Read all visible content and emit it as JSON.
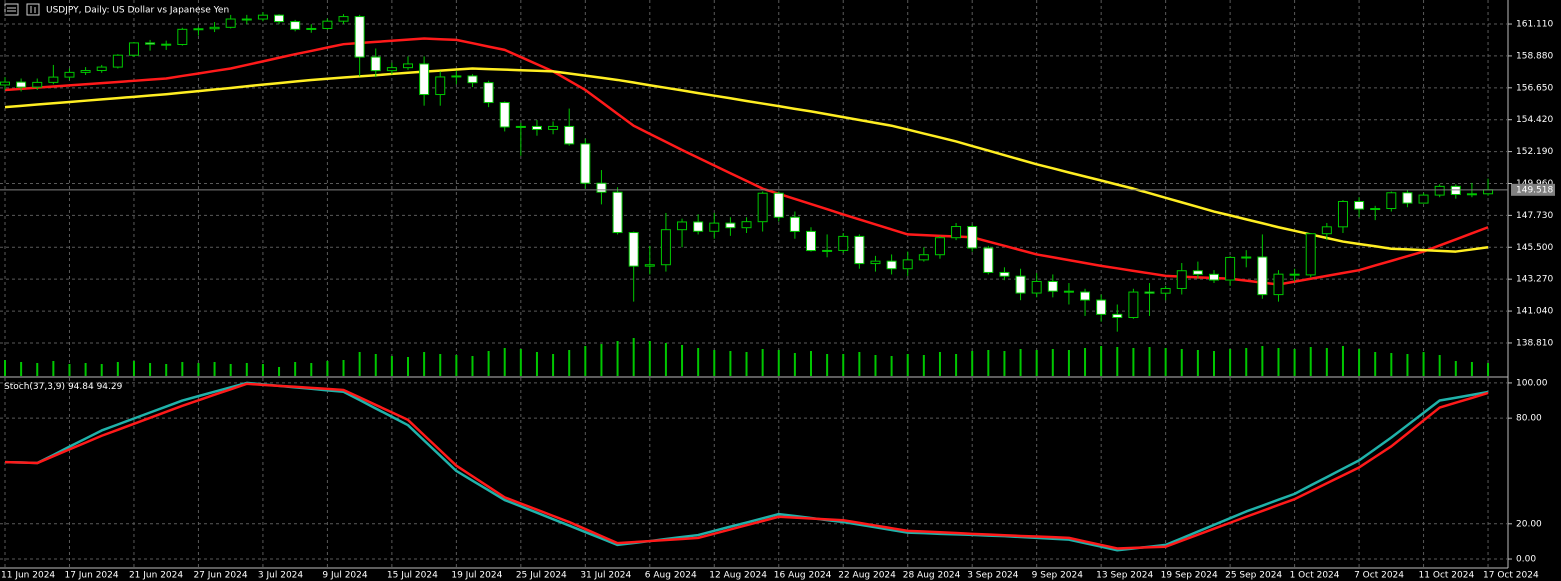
{
  "chart_data": [
    {
      "type": "candlestick",
      "title": "USDJPY, Daily:  US Dollar vs Japanese Yen",
      "categories": [
        "11 Jun 2024",
        null,
        null,
        null,
        "17 Jun 2024",
        null,
        null,
        null,
        "21 Jun 2024",
        null,
        null,
        null,
        "27 Jun 2024",
        null,
        null,
        null,
        "3 Jul 2024",
        null,
        null,
        null,
        "9 Jul 2024",
        null,
        null,
        null,
        "15 Jul 2024",
        null,
        null,
        null,
        "19 Jul 2024",
        null,
        null,
        null,
        "25 Jul 2024",
        null,
        null,
        null,
        "31 Jul 2024",
        null,
        null,
        null,
        "6 Aug 2024",
        null,
        null,
        null,
        "12 Aug 2024",
        null,
        null,
        null,
        "16 Aug 2024",
        null,
        null,
        null,
        "22 Aug 2024",
        null,
        null,
        null,
        "28 Aug 2024",
        null,
        null,
        null,
        "3 Sep 2024",
        null,
        null,
        null,
        "9 Sep 2024",
        null,
        null,
        null,
        "13 Sep 2024",
        null,
        null,
        null,
        "19 Sep 2024",
        null,
        null,
        null,
        "25 Sep 2024",
        null,
        null,
        null,
        "1 Oct 2024",
        null,
        null,
        null,
        "7 Oct 2024",
        null,
        null,
        null,
        "11 Oct 2024",
        null,
        null,
        null,
        "17 Oct 2024"
      ],
      "open": [
        156.85,
        157.05,
        156.7,
        157.03,
        157.4,
        157.73,
        157.86,
        158.1,
        158.93,
        159.79,
        159.7,
        159.68,
        160.74,
        160.78,
        160.88,
        161.46,
        161.46,
        161.73,
        161.28,
        160.74,
        160.8,
        161.31,
        161.63,
        158.8,
        157.85,
        158.06,
        158.32,
        156.18,
        157.41,
        157.48,
        157.01,
        155.62,
        153.91,
        153.95,
        153.74,
        153.95,
        152.73,
        149.98,
        149.35,
        146.53,
        144.18,
        144.28,
        146.73,
        147.27,
        146.62,
        147.19,
        146.87,
        147.29,
        149.28,
        147.6,
        146.61,
        145.27,
        145.28,
        146.26,
        144.36,
        144.53,
        144.0,
        144.62,
        144.98,
        146.17,
        146.95,
        145.45,
        143.74,
        143.48,
        142.3,
        143.11,
        142.43,
        142.37,
        141.81,
        140.81,
        140.59,
        142.37,
        142.29,
        142.62,
        143.86,
        143.61,
        143.21,
        144.79,
        144.82,
        142.19,
        143.62,
        143.57,
        146.45,
        146.93,
        148.7,
        148.17,
        148.21,
        149.31,
        148.59,
        149.15,
        149.76,
        149.19,
        149.24
      ],
      "high": [
        157.4,
        157.3,
        157.3,
        158.25,
        158.0,
        158.1,
        158.25,
        159.0,
        159.85,
        160.0,
        159.95,
        160.85,
        160.9,
        161.25,
        161.75,
        161.75,
        161.95,
        161.8,
        161.4,
        161.1,
        161.5,
        161.8,
        161.75,
        159.4,
        158.4,
        158.85,
        158.85,
        157.8,
        157.85,
        157.6,
        157.15,
        155.7,
        154.2,
        154.4,
        154.3,
        155.2,
        153.1,
        150.9,
        149.7,
        146.6,
        145.6,
        147.9,
        147.5,
        147.8,
        147.9,
        147.6,
        147.6,
        149.4,
        149.4,
        148.0,
        146.9,
        146.4,
        146.5,
        146.4,
        144.9,
        145.0,
        145.2,
        145.5,
        146.3,
        147.2,
        147.1,
        145.6,
        144.1,
        144.0,
        143.7,
        143.6,
        143.0,
        142.6,
        142.2,
        141.5,
        142.6,
        143.0,
        142.8,
        144.4,
        144.5,
        143.9,
        144.9,
        145.3,
        146.4,
        143.9,
        144.0,
        146.5,
        147.2,
        148.8,
        149.0,
        148.4,
        149.4,
        149.5,
        149.3,
        149.9,
        149.9,
        150.0,
        150.3
      ],
      "low": [
        156.5,
        156.4,
        156.5,
        156.9,
        157.2,
        157.55,
        157.7,
        158.0,
        158.8,
        159.25,
        159.3,
        159.6,
        160.3,
        160.55,
        160.8,
        161.1,
        161.3,
        161.1,
        160.6,
        160.5,
        160.7,
        161.1,
        157.45,
        157.4,
        157.6,
        157.9,
        155.4,
        155.4,
        156.9,
        156.7,
        155.3,
        153.6,
        151.9,
        153.3,
        153.4,
        152.6,
        149.6,
        148.5,
        146.4,
        141.7,
        143.6,
        143.8,
        145.5,
        146.4,
        146.1,
        146.3,
        146.5,
        146.6,
        147.3,
        146.1,
        145.2,
        144.8,
        145.1,
        144.0,
        143.8,
        143.6,
        143.5,
        144.5,
        144.7,
        146.0,
        145.2,
        143.6,
        143.2,
        141.8,
        142.0,
        142.0,
        141.5,
        140.7,
        140.3,
        139.6,
        140.5,
        140.7,
        141.8,
        142.2,
        143.3,
        143.0,
        142.8,
        144.1,
        141.9,
        141.7,
        143.1,
        143.4,
        146.0,
        146.5,
        147.6,
        147.4,
        148.0,
        148.3,
        148.6,
        149.0,
        148.9,
        149.0,
        149.1
      ],
      "close": [
        157.05,
        156.7,
        157.03,
        157.4,
        157.73,
        157.86,
        158.1,
        158.93,
        159.79,
        159.7,
        159.68,
        160.74,
        160.78,
        160.88,
        161.46,
        161.46,
        161.73,
        161.28,
        160.74,
        160.8,
        161.31,
        161.63,
        158.8,
        157.85,
        158.06,
        158.32,
        156.18,
        157.41,
        157.48,
        157.01,
        155.62,
        153.91,
        153.95,
        153.74,
        153.95,
        152.73,
        149.98,
        149.35,
        146.53,
        144.18,
        144.28,
        146.73,
        147.27,
        146.62,
        147.19,
        146.87,
        147.29,
        149.28,
        147.6,
        146.61,
        145.27,
        145.28,
        146.26,
        144.36,
        144.53,
        144.0,
        144.62,
        144.98,
        146.17,
        146.95,
        145.45,
        143.74,
        143.48,
        142.3,
        143.11,
        142.43,
        142.37,
        141.81,
        140.81,
        140.59,
        142.37,
        142.29,
        142.62,
        143.86,
        143.61,
        143.21,
        144.79,
        144.82,
        142.19,
        143.62,
        143.57,
        146.45,
        146.93,
        148.7,
        148.17,
        148.21,
        149.31,
        148.59,
        149.15,
        149.76,
        149.19,
        149.24,
        149.52
      ],
      "volume": [
        80000,
        70000,
        65000,
        75000,
        60000,
        65000,
        60000,
        70000,
        75000,
        65000,
        60000,
        70000,
        65000,
        70000,
        60000,
        65000,
        60000,
        45000,
        70000,
        65000,
        75000,
        80000,
        120000,
        110000,
        100000,
        95000,
        120000,
        110000,
        105000,
        100000,
        125000,
        140000,
        135000,
        120000,
        110000,
        130000,
        150000,
        160000,
        175000,
        190000,
        175000,
        165000,
        155000,
        140000,
        130000,
        125000,
        120000,
        135000,
        130000,
        115000,
        125000,
        110000,
        110000,
        120000,
        105000,
        100000,
        110000,
        105000,
        120000,
        110000,
        125000,
        130000,
        125000,
        135000,
        130000,
        135000,
        130000,
        140000,
        150000,
        145000,
        140000,
        145000,
        140000,
        135000,
        130000,
        125000,
        135000,
        140000,
        150000,
        140000,
        135000,
        145000,
        140000,
        150000,
        135000,
        120000,
        115000,
        110000,
        120000,
        105000,
        75000,
        70000,
        65000
      ],
      "volume_color": "#00c800",
      "up_color": "#000000",
      "down_color": "#ffffff",
      "wick_color": "#00c800",
      "series": [
        {
          "color": "#ff1a1a",
          "values": [
            156.5,
            156.58,
            156.66,
            156.74,
            156.82,
            156.9,
            156.98,
            157.06,
            157.14,
            157.22,
            157.3,
            157.48,
            157.65,
            157.83,
            158.0,
            158.25,
            158.5,
            158.75,
            159.0,
            159.23,
            159.47,
            159.7,
            159.78,
            159.86,
            159.94,
            160.02,
            160.1,
            160.05,
            160.0,
            159.77,
            159.53,
            159.3,
            158.8,
            158.3,
            157.8,
            157.15,
            156.5,
            155.67,
            154.83,
            154.0,
            153.43,
            152.87,
            152.3,
            151.76,
            151.22,
            150.68,
            150.14,
            149.6,
            149.24,
            148.88,
            148.52,
            148.16,
            147.8,
            147.45,
            147.1,
            146.75,
            146.4,
            146.35,
            146.3,
            146.25,
            146.2,
            145.9,
            145.6,
            145.3,
            145.0,
            144.8,
            144.6,
            144.4,
            144.2,
            144.03,
            143.85,
            143.68,
            143.5,
            143.45,
            143.4,
            143.35,
            143.3,
            143.17,
            143.03,
            142.9,
            143.1,
            143.3,
            143.5,
            143.7,
            143.9,
            144.23,
            144.55,
            144.88,
            145.2,
            145.63,
            146.05,
            146.48,
            146.9
          ]
        },
        {
          "color": "#ffee22",
          "values": [
            155.3,
            155.39,
            155.48,
            155.57,
            155.66,
            155.75,
            155.84,
            155.93,
            156.02,
            156.11,
            156.2,
            156.31,
            156.42,
            156.53,
            156.64,
            156.76,
            156.87,
            156.98,
            157.09,
            157.2,
            157.28,
            157.37,
            157.45,
            157.53,
            157.62,
            157.7,
            157.78,
            157.85,
            157.93,
            158.0,
            157.96,
            157.92,
            157.88,
            157.84,
            157.8,
            157.65,
            157.5,
            157.35,
            157.2,
            157.02,
            156.83,
            156.65,
            156.47,
            156.28,
            156.1,
            155.92,
            155.73,
            155.55,
            155.37,
            155.18,
            155.0,
            154.8,
            154.6,
            154.4,
            154.2,
            154.0,
            153.73,
            153.45,
            153.18,
            152.9,
            152.58,
            152.26,
            151.94,
            151.62,
            151.3,
            151.02,
            150.73,
            150.45,
            150.17,
            149.88,
            149.6,
            149.28,
            148.96,
            148.64,
            148.32,
            148.0,
            147.73,
            147.45,
            147.18,
            146.9,
            146.65,
            146.4,
            146.15,
            145.9,
            145.73,
            145.57,
            145.4,
            145.35,
            145.3,
            145.25,
            145.2,
            145.35,
            145.5
          ]
        }
      ],
      "last_price": 149.518,
      "ylim": [
        136.5,
        162.79
      ],
      "yticks": [
        {
          "value": 161.11,
          "label": "161.110"
        },
        {
          "value": 158.88,
          "label": "158.880"
        },
        {
          "value": 156.65,
          "label": "156.650"
        },
        {
          "value": 154.42,
          "label": "154.420"
        },
        {
          "value": 152.19,
          "label": "152.190"
        },
        {
          "value": 149.96,
          "label": "149.960"
        },
        {
          "value": 147.73,
          "label": "147.730"
        },
        {
          "value": 145.5,
          "label": "145.500"
        },
        {
          "value": 143.27,
          "label": "143.270"
        },
        {
          "value": 141.04,
          "label": "141.040"
        },
        {
          "value": 138.81,
          "label": "138.810"
        }
      ],
      "grid": true
    },
    {
      "type": "line",
      "title": "Stoch(37,3,9)",
      "series": [
        {
          "color": "#20b2aa",
          "values": [
            55.0,
            54.8,
            54.5,
            59.1,
            63.8,
            68.4,
            73.0,
            76.4,
            79.8,
            83.2,
            86.6,
            90.0,
            92.5,
            95.0,
            97.5,
            100.0,
            99.2,
            98.3,
            97.5,
            96.7,
            95.8,
            95.0,
            90.3,
            85.5,
            80.8,
            76.0,
            67.3,
            58.7,
            50.0,
            44.5,
            39.0,
            33.5,
            29.9,
            26.3,
            22.6,
            19.0,
            15.3,
            11.7,
            8.0,
            9.1,
            10.2,
            11.4,
            12.5,
            13.6,
            16.0,
            18.4,
            20.7,
            23.1,
            25.5,
            24.4,
            23.3,
            22.1,
            21.0,
            19.5,
            18.0,
            16.5,
            15.0,
            14.7,
            14.3,
            14.0,
            13.7,
            13.3,
            13.0,
            12.5,
            12.0,
            11.5,
            11.0,
            9.0,
            7.0,
            5.0,
            6.0,
            7.0,
            8.0,
            11.8,
            15.6,
            19.4,
            23.2,
            27.0,
            30.3,
            33.7,
            37.0,
            41.8,
            46.5,
            51.3,
            56.0,
            62.5,
            69.0,
            76.0,
            83.0,
            90.0,
            91.6,
            93.2,
            94.84
          ]
        },
        {
          "color": "#ff1a1a",
          "values": [
            55.0,
            54.8,
            54.5,
            58.4,
            62.3,
            66.1,
            70.0,
            73.4,
            76.8,
            80.2,
            83.6,
            87.0,
            90.1,
            93.3,
            96.4,
            99.5,
            98.9,
            98.3,
            97.8,
            97.2,
            96.6,
            96.0,
            91.8,
            87.5,
            83.3,
            79.0,
            70.3,
            61.7,
            53.0,
            47.0,
            41.0,
            35.0,
            31.5,
            28.0,
            24.5,
            21.0,
            17.0,
            13.0,
            9.0,
            9.6,
            10.2,
            10.8,
            11.4,
            12.0,
            14.4,
            16.8,
            19.2,
            21.6,
            24.0,
            23.5,
            23.0,
            22.5,
            22.0,
            20.5,
            19.0,
            17.5,
            16.0,
            15.6,
            15.2,
            14.8,
            14.3,
            13.9,
            13.5,
            13.1,
            12.8,
            12.4,
            12.0,
            10.0,
            8.0,
            6.0,
            6.3,
            6.7,
            7.0,
            10.4,
            13.8,
            17.2,
            20.6,
            24.0,
            27.3,
            30.7,
            34.0,
            38.5,
            43.0,
            47.5,
            52.0,
            58.0,
            64.0,
            71.3,
            78.7,
            86.0,
            88.8,
            91.5,
            94.29
          ]
        }
      ],
      "ylim": [
        -5.1,
        102.8
      ],
      "yticks": [
        {
          "value": 100,
          "label": "100.00"
        },
        {
          "value": 80,
          "label": "80.00"
        },
        {
          "value": 20,
          "label": "20.00"
        },
        {
          "value": 0,
          "label": "0.00"
        }
      ],
      "grid": true
    }
  ]
}
